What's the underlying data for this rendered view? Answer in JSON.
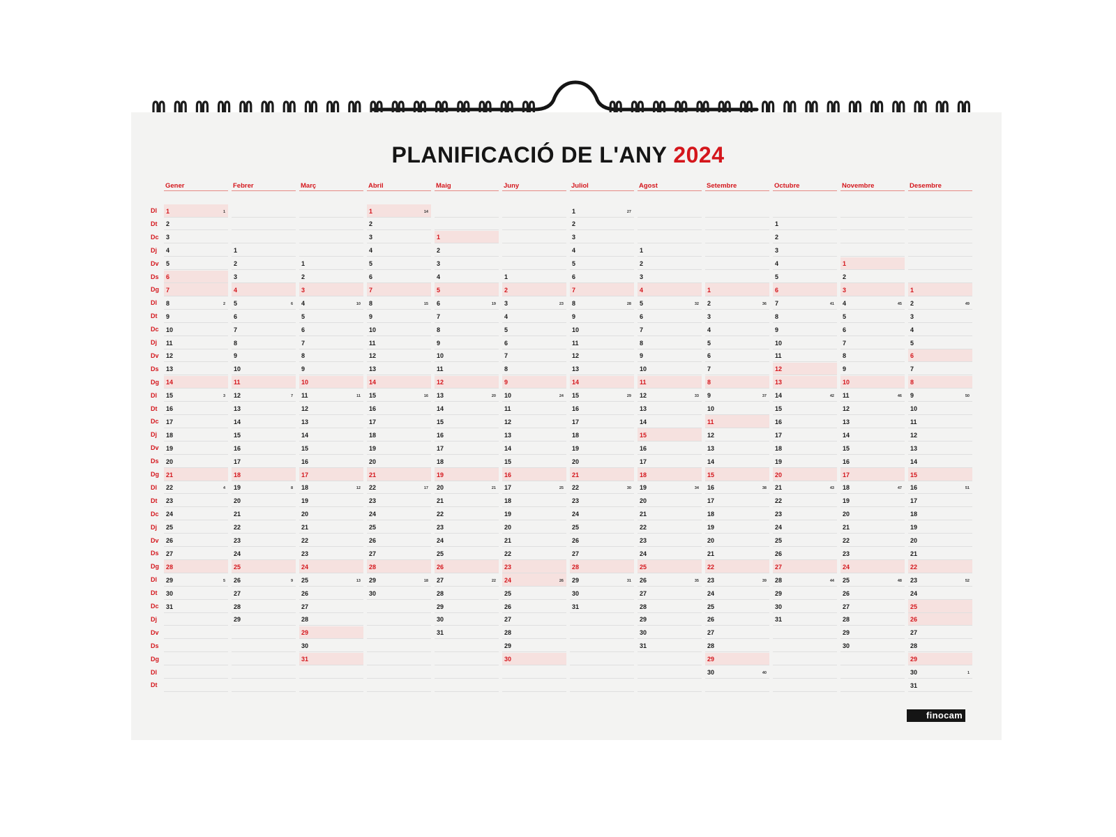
{
  "title": {
    "main": "PLANIFICACIÓ DE L'ANY",
    "year": "2024"
  },
  "brand": "finocam",
  "accent_color": "#d4161c",
  "weekday_labels": [
    "Dl",
    "Dt",
    "Dc",
    "Dj",
    "Dv",
    "Ds",
    "Dg",
    "Dl",
    "Dt",
    "Dc",
    "Dj",
    "Dv",
    "Ds",
    "Dg",
    "Dl",
    "Dt",
    "Dc",
    "Dj",
    "Dv",
    "Ds",
    "Dg",
    "Dl",
    "Dt",
    "Dc",
    "Dj",
    "Dv",
    "Ds",
    "Dg",
    "Dl",
    "Dt",
    "Dc",
    "Dj",
    "Dv",
    "Ds",
    "Dg",
    "Dl",
    "Dt"
  ],
  "months": [
    {
      "name": "Gener",
      "start_row": 0,
      "days": 31,
      "holidays": [
        1,
        6
      ],
      "weeks": {
        "1": "1",
        "8": "2",
        "15": "3",
        "22": "4",
        "29": "5"
      }
    },
    {
      "name": "Febrer",
      "start_row": 3,
      "days": 29,
      "holidays": [],
      "weeks": {
        "5": "6",
        "12": "7",
        "19": "8",
        "26": "9"
      }
    },
    {
      "name": "Març",
      "start_row": 4,
      "days": 31,
      "holidays": [
        29
      ],
      "weeks": {
        "4": "10",
        "11": "11",
        "18": "12",
        "25": "13"
      }
    },
    {
      "name": "Abril",
      "start_row": 0,
      "days": 30,
      "holidays": [
        1
      ],
      "weeks": {
        "1": "14",
        "8": "15",
        "15": "16",
        "22": "17",
        "29": "18"
      }
    },
    {
      "name": "Maig",
      "start_row": 2,
      "days": 31,
      "holidays": [
        1
      ],
      "weeks": {
        "6": "19",
        "13": "20",
        "20": "21",
        "27": "22"
      }
    },
    {
      "name": "Juny",
      "start_row": 5,
      "days": 30,
      "holidays": [
        24
      ],
      "weeks": {
        "3": "23",
        "10": "24",
        "17": "25",
        "24": "26"
      }
    },
    {
      "name": "Juliol",
      "start_row": 0,
      "days": 31,
      "holidays": [],
      "weeks": {
        "1": "27",
        "8": "28",
        "15": "29",
        "22": "30",
        "29": "31"
      }
    },
    {
      "name": "Agost",
      "start_row": 3,
      "days": 31,
      "holidays": [
        15
      ],
      "weeks": {
        "5": "32",
        "12": "33",
        "19": "34",
        "26": "35"
      }
    },
    {
      "name": "Setembre",
      "start_row": 6,
      "days": 30,
      "holidays": [
        11
      ],
      "weeks": {
        "2": "36",
        "9": "37",
        "16": "38",
        "23": "39",
        "30": "40"
      }
    },
    {
      "name": "Octubre",
      "start_row": 1,
      "days": 31,
      "holidays": [
        12
      ],
      "weeks": {
        "7": "41",
        "14": "42",
        "21": "43",
        "28": "44"
      }
    },
    {
      "name": "Novembre",
      "start_row": 4,
      "days": 30,
      "holidays": [
        1
      ],
      "weeks": {
        "4": "45",
        "11": "46",
        "18": "47",
        "25": "48"
      }
    },
    {
      "name": "Desembre",
      "start_row": 6,
      "days": 31,
      "holidays": [
        6,
        25,
        26
      ],
      "weeks": {
        "2": "49",
        "9": "50",
        "16": "51",
        "23": "52",
        "30": "1"
      }
    }
  ]
}
